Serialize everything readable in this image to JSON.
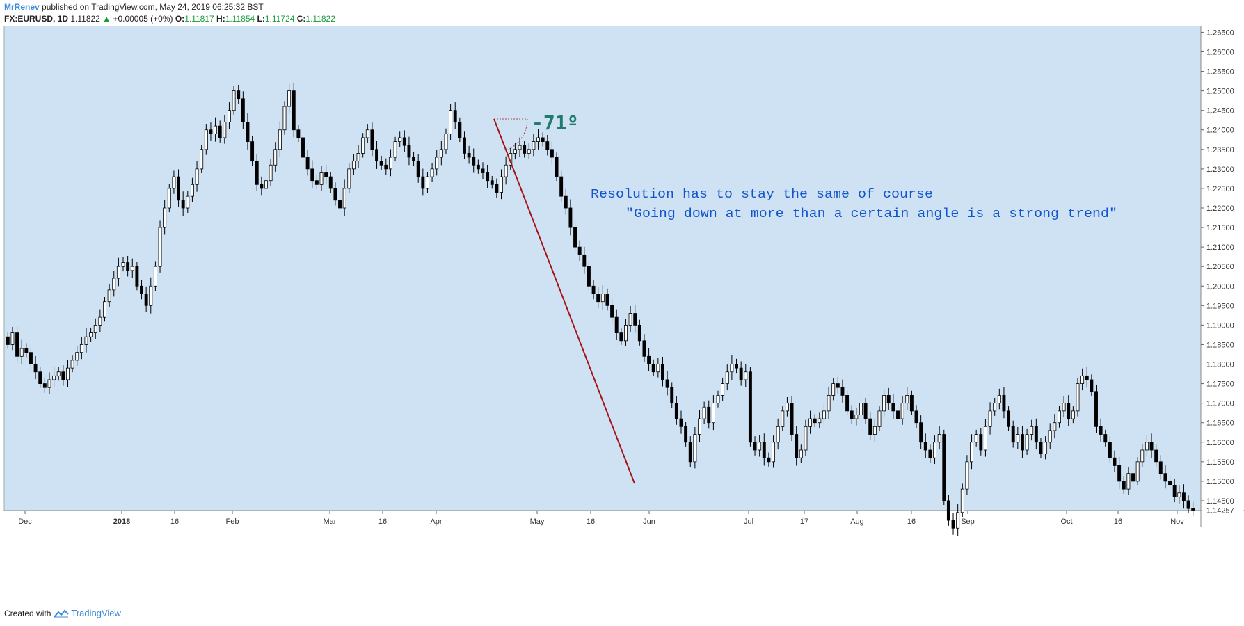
{
  "header": {
    "author": "MrRenev",
    "published": "published on TradingView.com, May 24, 2019 06:25:32 BST",
    "symbol": "FX:EURUSD, 1D",
    "last": "1.11822",
    "change": "+0.00005 (+0%)",
    "o_label": "O:",
    "o_val": "1.11817",
    "h_label": "H:",
    "h_val": "1.11854",
    "l_label": "L:",
    "l_val": "1.11724",
    "c_label": "C:",
    "c_val": "1.11822"
  },
  "footer": {
    "created": "Created with",
    "brand": "TradingView"
  },
  "annotations": {
    "angle": "-71º",
    "line1": "Resolution has to stay the same of course",
    "line2": "\"Going down at more than a certain angle is a strong trend\""
  },
  "colors": {
    "background": "#cfe2f3",
    "trendline": "#a31515",
    "angle_text": "#1f7a6f",
    "note_text": "#1155cc",
    "candle_dark": "#000000",
    "candle_light": "#ffffff"
  },
  "chart_data": {
    "type": "candlestick",
    "symbol": "FX:EURUSD",
    "interval": "1D",
    "x_tick_labels": [
      "Dec",
      "2018",
      "16",
      "Feb",
      "Mar",
      "16",
      "Apr",
      "May",
      "16",
      "Jun",
      "Jul",
      "17",
      "Aug",
      "16",
      "Sep",
      "Oct",
      "16",
      "Nov"
    ],
    "y_tick_labels": [
      "1.26500",
      "1.26000",
      "1.25500",
      "1.25000",
      "1.24500",
      "1.24000",
      "1.23500",
      "1.23000",
      "1.22500",
      "1.22000",
      "1.21500",
      "1.21000",
      "1.20500",
      "1.20000",
      "1.19500",
      "1.19000",
      "1.18500",
      "1.18000",
      "1.17500",
      "1.17000",
      "1.16500",
      "1.16000",
      "1.15500",
      "1.15000",
      "1.14500"
    ],
    "ylim": [
      1.1425,
      1.2665
    ],
    "last_price_label": "1.14257",
    "closes": [
      1.185,
      1.188,
      1.182,
      1.184,
      1.183,
      1.18,
      1.178,
      1.175,
      1.174,
      1.176,
      1.177,
      1.178,
      1.176,
      1.179,
      1.181,
      1.183,
      1.185,
      1.187,
      1.188,
      1.19,
      1.192,
      1.196,
      1.199,
      1.202,
      1.205,
      1.206,
      1.204,
      1.205,
      1.2,
      1.198,
      1.195,
      1.2,
      1.205,
      1.215,
      1.22,
      1.225,
      1.228,
      1.222,
      1.22,
      1.223,
      1.226,
      1.23,
      1.235,
      1.24,
      1.239,
      1.241,
      1.238,
      1.242,
      1.245,
      1.25,
      1.248,
      1.242,
      1.237,
      1.232,
      1.226,
      1.225,
      1.227,
      1.231,
      1.235,
      1.24,
      1.246,
      1.25,
      1.24,
      1.238,
      1.233,
      1.23,
      1.227,
      1.226,
      1.229,
      1.228,
      1.225,
      1.222,
      1.22,
      1.225,
      1.23,
      1.232,
      1.234,
      1.238,
      1.24,
      1.235,
      1.232,
      1.231,
      1.23,
      1.233,
      1.237,
      1.238,
      1.236,
      1.233,
      1.232,
      1.228,
      1.225,
      1.228,
      1.23,
      1.233,
      1.235,
      1.239,
      1.245,
      1.242,
      1.238,
      1.234,
      1.233,
      1.231,
      1.23,
      1.229,
      1.227,
      1.226,
      1.224,
      1.228,
      1.231,
      1.234,
      1.235,
      1.236,
      1.234,
      1.235,
      1.237,
      1.238,
      1.237,
      1.235,
      1.233,
      1.228,
      1.223,
      1.22,
      1.215,
      1.21,
      1.208,
      1.205,
      1.2,
      1.198,
      1.196,
      1.198,
      1.195,
      1.192,
      1.188,
      1.186,
      1.19,
      1.193,
      1.19,
      1.186,
      1.182,
      1.18,
      1.178,
      1.18,
      1.176,
      1.174,
      1.17,
      1.166,
      1.164,
      1.16,
      1.155,
      1.162,
      1.166,
      1.169,
      1.165,
      1.17,
      1.172,
      1.175,
      1.178,
      1.18,
      1.179,
      1.176,
      1.178,
      1.16,
      1.158,
      1.16,
      1.156,
      1.155,
      1.16,
      1.164,
      1.168,
      1.17,
      1.162,
      1.156,
      1.158,
      1.164,
      1.166,
      1.165,
      1.166,
      1.168,
      1.172,
      1.175,
      1.174,
      1.172,
      1.168,
      1.166,
      1.167,
      1.17,
      1.166,
      1.162,
      1.164,
      1.168,
      1.172,
      1.17,
      1.168,
      1.166,
      1.17,
      1.172,
      1.168,
      1.165,
      1.16,
      1.158,
      1.156,
      1.16,
      1.162,
      1.145,
      1.14,
      1.138,
      1.142,
      1.148,
      1.155,
      1.16,
      1.162,
      1.158,
      1.164,
      1.168,
      1.17,
      1.172,
      1.168,
      1.164,
      1.16,
      1.162,
      1.158,
      1.162,
      1.164,
      1.16,
      1.157,
      1.16,
      1.163,
      1.165,
      1.168,
      1.17,
      1.166,
      1.168,
      1.175,
      1.177,
      1.176,
      1.173,
      1.164,
      1.162,
      1.16,
      1.156,
      1.154,
      1.15,
      1.148,
      1.152,
      1.15,
      1.155,
      1.158,
      1.16,
      1.158,
      1.155,
      1.152,
      1.15,
      1.149,
      1.146,
      1.147,
      1.145,
      1.143,
      1.1426
    ]
  }
}
